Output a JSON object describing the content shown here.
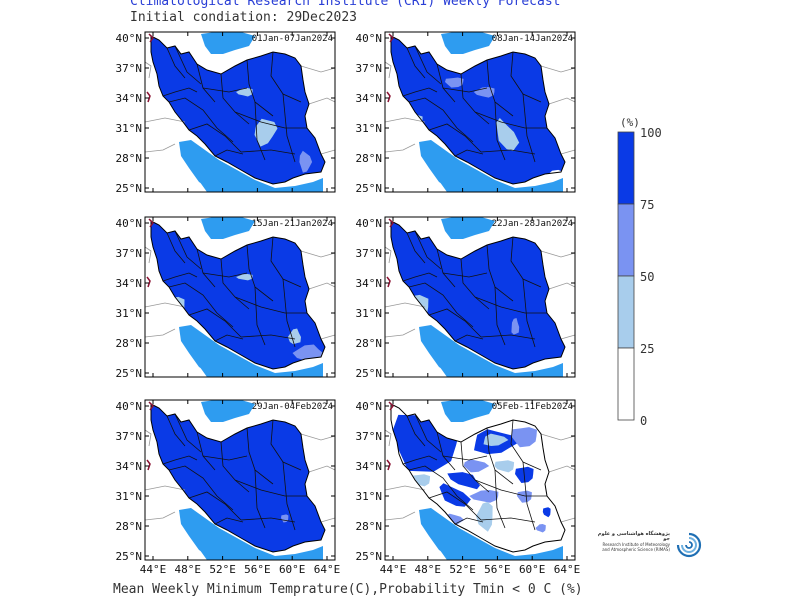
{
  "header": {
    "title": "Climatological Research Institute (CRI) Weekly Forecast",
    "subtitle": "Initial condiation: 29Dec2023"
  },
  "footer": {
    "caption": "Mean Weekly Minimum Temprature(C),Probability Tmin < 0 C (%)"
  },
  "axes": {
    "lat_labels": [
      "40°N",
      "37°N",
      "34°N",
      "31°N",
      "28°N",
      "25°N"
    ],
    "lon_labels": [
      "44°E",
      "48°E",
      "52°E",
      "56°E",
      "60°E",
      "64°E"
    ]
  },
  "panels": [
    {
      "period": "01Jan-07Jan2024"
    },
    {
      "period": "08Jan-14Jan2024"
    },
    {
      "period": "15Jan-21Jan2024"
    },
    {
      "period": "22Jan-28Jan2024"
    },
    {
      "period": "29Jan-04Feb2024"
    },
    {
      "period": "05Feb-11Feb2024"
    }
  ],
  "legend": {
    "unit": "(%)",
    "ticks": [
      "100",
      "75",
      "50",
      "25",
      "0"
    ],
    "colors": [
      "#0a3ae6",
      "#7a93f2",
      "#a8cdec",
      "#ffffff"
    ]
  },
  "colors": {
    "sea": "#2e9cf0",
    "high": "#0a3ae6",
    "mid": "#7a93f2",
    "low": "#a8cdec"
  },
  "logo": {
    "fa_text": "پژوهشگاه هواشناسی و علوم جو",
    "en_text_1": "Research Institute of Meteorology",
    "en_text_2": "and Atmospheric Science (RIMAS)"
  }
}
